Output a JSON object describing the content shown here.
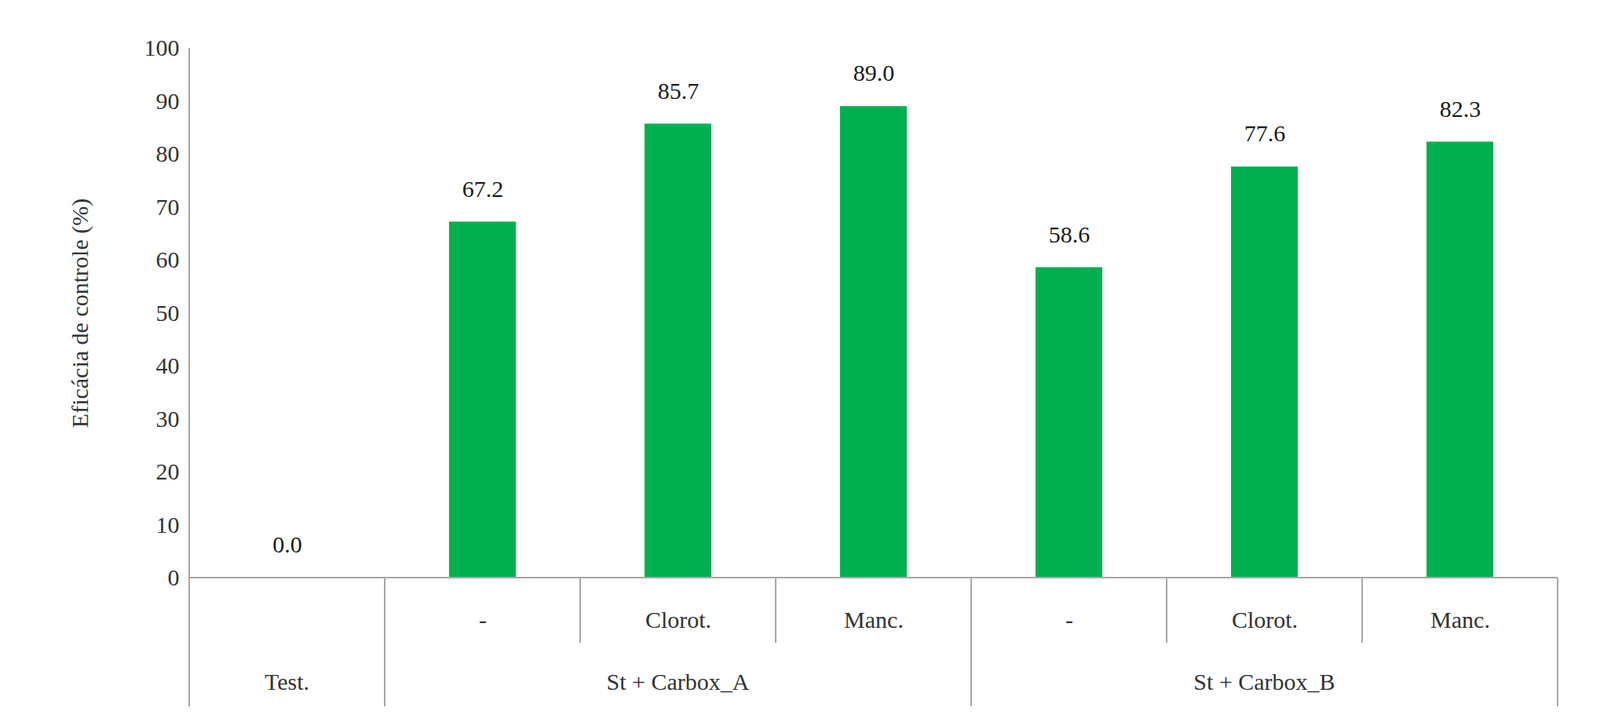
{
  "chart_data": {
    "type": "bar",
    "y_label": "Eficácia de controle (%)",
    "categories": [
      null,
      "-",
      "Clorot.",
      "Manc.",
      "-",
      "Clorot.",
      "Manc."
    ],
    "group": [
      "Test.",
      "St + Carbox_A",
      "St + Carbox_A",
      "St + Carbox_A",
      "St + Carbox_B",
      "St + Carbox_B",
      "St + Carbox_B"
    ],
    "values": [
      0.0,
      67.2,
      85.7,
      89.0,
      58.6,
      77.6,
      82.3
    ],
    "value_labels": [
      "0.0",
      "67.2",
      "85.7",
      "89.0",
      "58.6",
      "77.6",
      "82.3"
    ],
    "color": "#00b050",
    "ylim": [
      0,
      100
    ],
    "yticks": [
      0,
      10,
      20,
      30,
      40,
      50,
      60,
      70,
      80,
      90,
      100
    ],
    "grid": false,
    "data_labels": true
  }
}
